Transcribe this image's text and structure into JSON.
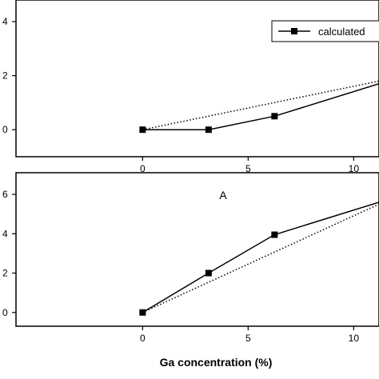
{
  "chart_data": [
    {
      "type": "line",
      "xlim": [
        -6,
        11.2
      ],
      "ylim": [
        -0.1,
        0.48
      ],
      "xticks": [
        0,
        5,
        10
      ],
      "yticks": [
        0.0,
        0.2,
        0.4
      ],
      "xtick_labels": [
        "0",
        "5",
        "10"
      ],
      "ytick_labels": [
        "0",
        "2",
        "4"
      ],
      "grid": false,
      "legend": {
        "entries": [
          "calculated"
        ],
        "placement": "top-right"
      },
      "series": [
        {
          "name": "calculated",
          "style": "solid-square-markers",
          "x": [
            0,
            3.125,
            6.25,
            11.2
          ],
          "y": [
            0.0,
            0.0,
            0.05,
            0.17
          ]
        },
        {
          "style": "dotted",
          "x": [
            0,
            11.2
          ],
          "y": [
            0.0,
            0.18
          ]
        }
      ]
    },
    {
      "type": "line",
      "annotation": "A",
      "xlabel": "Ga concentration (%)",
      "xlim": [
        -6,
        11.2
      ],
      "ylim": [
        -0.07,
        0.71
      ],
      "xticks": [
        0,
        5,
        10
      ],
      "yticks": [
        0.0,
        0.2,
        0.4,
        0.6
      ],
      "xtick_labels": [
        "0",
        "5",
        "10"
      ],
      "ytick_labels": [
        "0",
        "2",
        "4",
        "6"
      ],
      "grid": false,
      "series": [
        {
          "style": "solid-square-markers",
          "x": [
            0,
            3.125,
            6.25,
            11.2
          ],
          "y": [
            0.0,
            0.2,
            0.395,
            0.56
          ]
        },
        {
          "style": "dotted",
          "x": [
            0,
            11.2
          ],
          "y": [
            0.0,
            0.55
          ]
        }
      ]
    }
  ]
}
